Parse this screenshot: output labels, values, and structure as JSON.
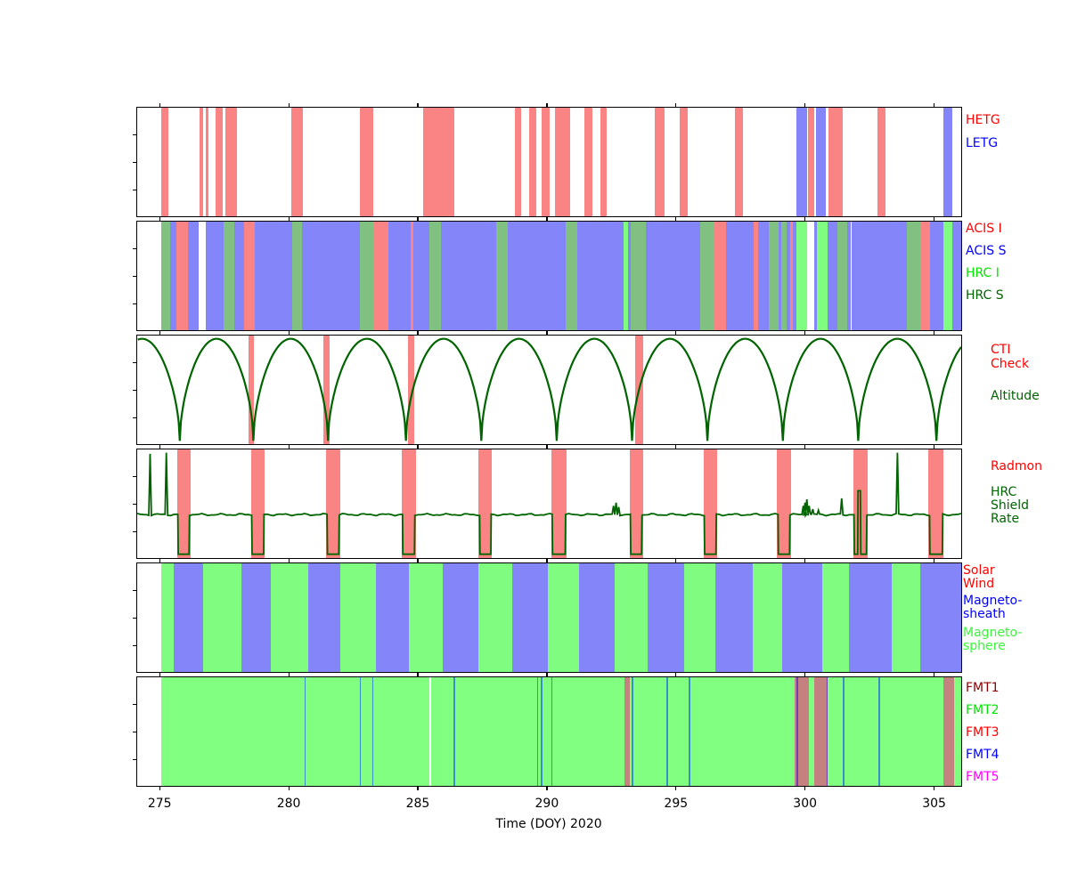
{
  "chart_data": {
    "type": "timeline-bands",
    "title": "",
    "x_axis": {
      "label": "Time (DOY) 2020",
      "ticks": [
        275,
        280,
        285,
        290,
        295,
        300,
        305
      ],
      "range": [
        274.13,
        306.05
      ]
    },
    "palette": {
      "W": "#ffffff",
      "salmon": "#fa8484",
      "S": "#8585fa",
      "I": "#fa8484",
      "HS": "#80c080",
      "HI": "#80fd80",
      "G": "#80fc80",
      "B": "#8585fa",
      "fmtG": "#80ff80",
      "fmtDark": "#c58080",
      "lineTeal": "#3b8fc4",
      "lineWhite": "#ffffff",
      "linePurple": "#7040b0",
      "letgBlue": "#8585fa",
      "curve": "#006400"
    },
    "panels": [
      {
        "name": "gratings",
        "legend": [
          {
            "lines": [
              "HETG"
            ],
            "color": "#ff0000"
          },
          {
            "lines": [
              "LETG"
            ],
            "color": "#0000ff"
          }
        ],
        "hetg_bands": [
          [
            275.07,
            275.35
          ],
          [
            276.55,
            276.7
          ],
          [
            276.78,
            276.9
          ],
          [
            277.17,
            277.45
          ],
          [
            277.55,
            277.98
          ],
          [
            280.1,
            280.55
          ],
          [
            282.76,
            283.27
          ],
          [
            285.2,
            286.43
          ],
          [
            288.76,
            289.01
          ],
          [
            289.3,
            289.59
          ],
          [
            289.81,
            290.1
          ],
          [
            290.32,
            290.9
          ],
          [
            291.44,
            291.76
          ],
          [
            292.08,
            292.33
          ],
          [
            294.17,
            294.57
          ],
          [
            295.14,
            295.45
          ],
          [
            297.29,
            297.59
          ],
          [
            300.11,
            300.34
          ],
          [
            300.91,
            301.45
          ],
          [
            302.79,
            303.11
          ]
        ],
        "letg_bands": [
          [
            299.68,
            300.08
          ],
          [
            300.42,
            300.82
          ],
          [
            305.37,
            305.72
          ]
        ]
      },
      {
        "name": "science-instruments",
        "legend": [
          {
            "lines": [
              "ACIS I"
            ],
            "color": "#ff0000"
          },
          {
            "lines": [
              "ACIS S"
            ],
            "color": "#0000ff"
          },
          {
            "lines": [
              "HRC I"
            ],
            "color": "#00e400"
          },
          {
            "lines": [
              "HRC S"
            ],
            "color": "#006400"
          }
        ],
        "segments": [
          [
            274.13,
            275.07,
            "W"
          ],
          [
            275.07,
            275.42,
            "HS"
          ],
          [
            275.42,
            275.64,
            "S"
          ],
          [
            275.64,
            276.11,
            "I"
          ],
          [
            276.11,
            276.51,
            "S"
          ],
          [
            276.51,
            276.79,
            "W"
          ],
          [
            276.79,
            277.48,
            "S"
          ],
          [
            277.48,
            277.88,
            "HS"
          ],
          [
            277.88,
            278.28,
            "S"
          ],
          [
            278.28,
            278.69,
            "I"
          ],
          [
            278.69,
            280.12,
            "S"
          ],
          [
            280.12,
            280.52,
            "HS"
          ],
          [
            280.52,
            282.76,
            "S"
          ],
          [
            282.76,
            283.27,
            "HS"
          ],
          [
            283.27,
            283.85,
            "I"
          ],
          [
            283.85,
            284.71,
            "S"
          ],
          [
            284.71,
            284.82,
            "I"
          ],
          [
            284.82,
            285.44,
            "S"
          ],
          [
            285.44,
            285.91,
            "HS"
          ],
          [
            285.91,
            288.04,
            "S"
          ],
          [
            288.04,
            288.49,
            "HS"
          ],
          [
            288.49,
            290.73,
            "S"
          ],
          [
            290.73,
            291.19,
            "HS"
          ],
          [
            291.19,
            292.97,
            "S"
          ],
          [
            292.97,
            293.14,
            "HI"
          ],
          [
            293.14,
            293.25,
            "S"
          ],
          [
            293.25,
            293.83,
            "HS"
          ],
          [
            293.83,
            295.95,
            "S"
          ],
          [
            295.95,
            296.47,
            "HS"
          ],
          [
            296.47,
            296.93,
            "I"
          ],
          [
            296.93,
            298.02,
            "S"
          ],
          [
            298.02,
            298.19,
            "I"
          ],
          [
            298.19,
            298.59,
            "S"
          ],
          [
            298.59,
            298.97,
            "HS"
          ],
          [
            298.97,
            299.07,
            "S"
          ],
          [
            299.07,
            299.3,
            "HS"
          ],
          [
            299.3,
            299.42,
            "S"
          ],
          [
            299.42,
            299.53,
            "I"
          ],
          [
            299.53,
            299.66,
            "S"
          ],
          [
            299.66,
            300.08,
            "HI"
          ],
          [
            300.08,
            300.37,
            "W"
          ],
          [
            300.37,
            300.47,
            "S"
          ],
          [
            300.47,
            300.89,
            "HI"
          ],
          [
            300.89,
            301.24,
            "S"
          ],
          [
            301.24,
            301.64,
            "HS"
          ],
          [
            301.64,
            301.78,
            "S"
          ],
          [
            301.78,
            301.82,
            "W"
          ],
          [
            301.82,
            303.93,
            "S"
          ],
          [
            303.93,
            304.45,
            "HS"
          ],
          [
            304.45,
            304.85,
            "I"
          ],
          [
            304.85,
            305.37,
            "S"
          ],
          [
            305.37,
            305.71,
            "HI"
          ],
          [
            305.71,
            306.05,
            "S"
          ]
        ]
      },
      {
        "name": "altitude",
        "legend": [
          {
            "lines": [
              "CTI",
              "Check"
            ],
            "color": "#ff0000"
          },
          {
            "lines": [
              "Altitude"
            ],
            "color": "#006400"
          }
        ],
        "cti_bands": [
          [
            278.45,
            278.66
          ],
          [
            281.33,
            281.58
          ],
          [
            284.63,
            284.87
          ],
          [
            293.43,
            293.72
          ]
        ],
        "perigees": [
          272.86,
          275.78,
          278.63,
          281.52,
          284.54,
          287.46,
          290.38,
          293.3,
          296.22,
          299.14,
          302.06,
          305.09,
          308.01
        ]
      },
      {
        "name": "radmon-shield",
        "legend": [
          {
            "lines": [
              "Radmon"
            ],
            "color": "#ff0000"
          },
          {
            "lines": [
              "HRC",
              "Shield",
              "Rate"
            ],
            "color": "#006400"
          }
        ],
        "radmon_bands": [
          [
            275.67,
            276.19
          ],
          [
            278.53,
            279.08
          ],
          [
            281.45,
            281.99
          ],
          [
            284.37,
            284.92
          ],
          [
            287.36,
            287.88
          ],
          [
            290.17,
            290.76
          ],
          [
            293.2,
            293.72
          ],
          [
            296.06,
            296.6
          ],
          [
            298.92,
            299.45
          ],
          [
            301.86,
            302.43
          ],
          [
            304.79,
            305.37
          ]
        ],
        "shield": {
          "baseline": 0.6,
          "low": 0.965,
          "spikes": [
            [
              274.63,
              0.04
            ],
            [
              275.26,
              0.03
            ],
            [
              292.58,
              0.52
            ],
            [
              292.68,
              0.49
            ],
            [
              292.78,
              0.53
            ],
            [
              299.93,
              0.52
            ],
            [
              300.0,
              0.49
            ],
            [
              300.07,
              0.46
            ],
            [
              300.16,
              0.52
            ],
            [
              300.3,
              0.55
            ],
            [
              300.52,
              0.56
            ],
            [
              301.42,
              0.45
            ],
            [
              303.58,
              0.03
            ]
          ],
          "dip_spike": {
            "t": 302.1,
            "top": 0.38,
            "dip_index": 9
          }
        }
      },
      {
        "name": "magnetosphere-region",
        "legend": [
          {
            "lines": [
              "Solar",
              "Wind"
            ],
            "color": "#ff0000"
          },
          {
            "lines": [
              "Magneto-",
              "sheath"
            ],
            "color": "#0000ff"
          },
          {
            "lines": [
              "Magneto-",
              "sphere"
            ],
            "color": "#3cf53c"
          }
        ],
        "segments": [
          [
            274.13,
            275.05,
            "W"
          ],
          [
            275.05,
            275.53,
            "G"
          ],
          [
            275.53,
            276.68,
            "B"
          ],
          [
            276.68,
            278.17,
            "G"
          ],
          [
            278.17,
            279.31,
            "B"
          ],
          [
            279.31,
            280.75,
            "G"
          ],
          [
            280.75,
            282.01,
            "B"
          ],
          [
            282.01,
            283.38,
            "G"
          ],
          [
            283.38,
            284.64,
            "B"
          ],
          [
            284.64,
            285.97,
            "G"
          ],
          [
            285.97,
            287.34,
            "B"
          ],
          [
            287.34,
            288.66,
            "G"
          ],
          [
            288.66,
            290.04,
            "B"
          ],
          [
            290.04,
            291.25,
            "G"
          ],
          [
            291.25,
            292.62,
            "B"
          ],
          [
            292.62,
            293.89,
            "G"
          ],
          [
            293.89,
            295.32,
            "B"
          ],
          [
            295.32,
            296.53,
            "G"
          ],
          [
            296.53,
            297.96,
            "B"
          ],
          [
            297.96,
            299.11,
            "G"
          ],
          [
            299.11,
            300.66,
            "B"
          ],
          [
            300.66,
            301.69,
            "G"
          ],
          [
            301.69,
            303.36,
            "B"
          ],
          [
            303.36,
            304.45,
            "G"
          ],
          [
            304.45,
            306.05,
            "B"
          ]
        ]
      },
      {
        "name": "telemetry-format",
        "legend": [
          {
            "lines": [
              "FMT1"
            ],
            "color": "#8b0000"
          },
          {
            "lines": [
              "FMT2"
            ],
            "color": "#00e400"
          },
          {
            "lines": [
              "FMT3"
            ],
            "color": "#ff0000"
          },
          {
            "lines": [
              "FMT4"
            ],
            "color": "#0000ff"
          },
          {
            "lines": [
              "FMT5"
            ],
            "color": "#ff00ff"
          }
        ],
        "background_band": [
          275.05,
          306.05
        ],
        "dark_bands": [
          [
            292.99,
            293.2
          ],
          [
            299.6,
            300.14
          ],
          [
            300.37,
            300.89
          ],
          [
            305.37,
            305.77
          ]
        ],
        "blue_lines": [
          280.64,
          282.77,
          283.25,
          286.42,
          289.65,
          289.8,
          290.2,
          293.32,
          294.66,
          295.53,
          301.5,
          302.87
        ],
        "white_lines": [
          285.48
        ],
        "purple_lines": [
          299.7,
          300.85
        ]
      }
    ]
  }
}
